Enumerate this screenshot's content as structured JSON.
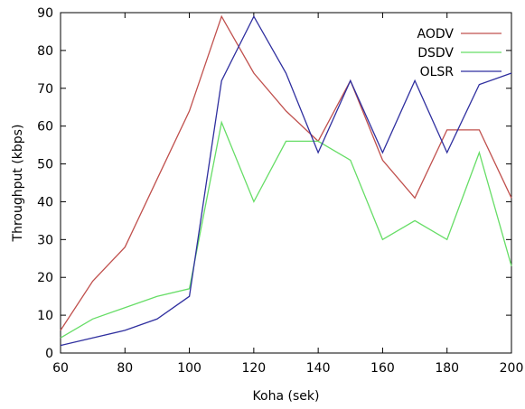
{
  "chart_data": {
    "type": "line",
    "title": "",
    "xlabel": "Koha (sek)",
    "ylabel": "Throughput (kbps)",
    "xlim": [
      60,
      200
    ],
    "ylim": [
      0,
      90
    ],
    "xticks": [
      60,
      80,
      100,
      120,
      140,
      160,
      180,
      200
    ],
    "yticks": [
      0,
      10,
      20,
      30,
      40,
      50,
      60,
      70,
      80,
      90
    ],
    "grid": false,
    "legend_position": "top-right",
    "x": [
      60,
      70,
      80,
      90,
      100,
      110,
      120,
      130,
      140,
      150,
      160,
      170,
      180,
      190,
      200
    ],
    "series": [
      {
        "name": "AODV",
        "color": "#c0504d",
        "values": [
          6,
          19,
          28,
          46,
          64,
          89,
          74,
          64,
          56,
          72,
          51,
          41,
          59,
          59,
          41
        ]
      },
      {
        "name": "DSDV",
        "color": "#66dd66",
        "values": [
          4,
          9,
          12,
          15,
          17,
          61,
          40,
          56,
          56,
          51,
          30,
          35,
          30,
          53,
          23
        ]
      },
      {
        "name": "OLSR",
        "color": "#2f2f9f",
        "values": [
          2,
          4,
          6,
          9,
          15,
          72,
          89,
          74,
          53,
          72,
          53,
          72,
          53,
          71,
          74
        ]
      }
    ]
  }
}
